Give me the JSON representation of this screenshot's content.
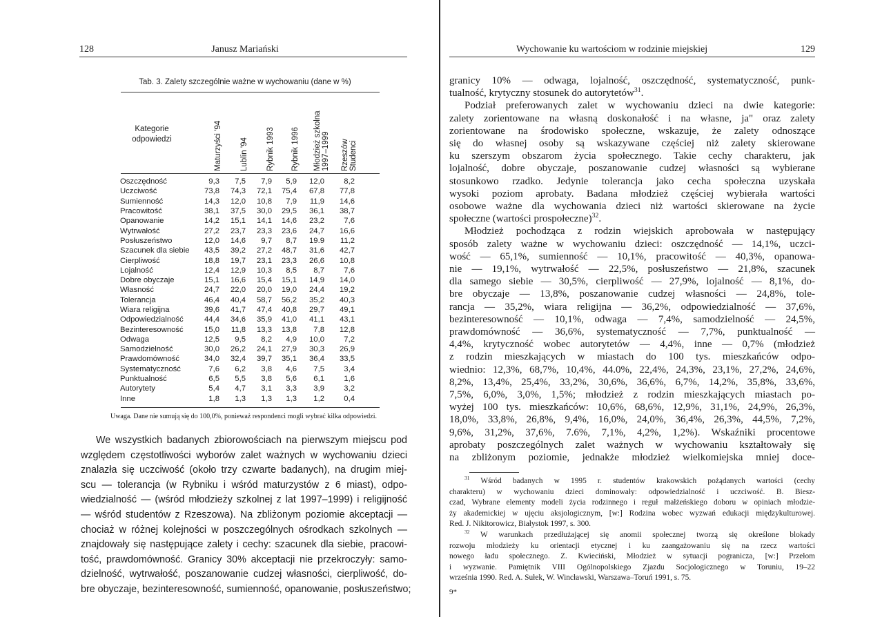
{
  "left_page": {
    "page_number": "128",
    "running_head": "Janusz Mariański",
    "table": {
      "title": "Tab. 3. Zalety szczególnie ważne w wychowaniu (dane w %)",
      "category_header": [
        "Kategorie",
        "odpowiedzi"
      ],
      "columns": [
        [
          "Maturzyści '94"
        ],
        [
          "Lublin '94"
        ],
        [
          "Rybnik 1993"
        ],
        [
          "Rybnik 1996"
        ],
        [
          "Młodzież szkolna",
          "1997–1999"
        ],
        [
          "Rzeszów",
          "Studenci"
        ]
      ],
      "rows": [
        [
          "Oszczędność",
          "9,3",
          "7,5",
          "7,9",
          "5,9",
          "12,0",
          "8,2"
        ],
        [
          "Uczciwość",
          "73,8",
          "74,3",
          "72,1",
          "75,4",
          "67,8",
          "77,8"
        ],
        [
          "Sumienność",
          "14,3",
          "12,0",
          "10,8",
          "7,9",
          "11,9",
          "14,6"
        ],
        [
          "Pracowitość",
          "38,1",
          "37,5",
          "30,0",
          "29,5",
          "36,1",
          "38,7"
        ],
        [
          "Opanowanie",
          "14,2",
          "15,1",
          "14,1",
          "14,6",
          "23,2",
          "7,6"
        ],
        [
          "Wytrwałość",
          "27,2",
          "23,7",
          "23,3",
          "23,6",
          "24,7",
          "16,6"
        ],
        [
          "Posłuszeństwo",
          "12,0",
          "14,6",
          "9,7",
          "8,7",
          "19.9",
          "11,2"
        ],
        [
          "Szacunek dla siebie",
          "43,5",
          "39,2",
          "27,2",
          "48,7",
          "31,6",
          "42,7"
        ],
        [
          "Cierpliwość",
          "18,8",
          "19,7",
          "23,1",
          "23,3",
          "26,6",
          "10,8"
        ],
        [
          "Lojalność",
          "12,4",
          "12,9",
          "10,3",
          "8,5",
          "8,7",
          "7,6"
        ],
        [
          "Dobre obyczaje",
          "15,1",
          "16,6",
          "15,4",
          "15,1",
          "14,9",
          "14,0"
        ],
        [
          "Własność",
          "24,7",
          "22,0",
          "20,0",
          "19,0",
          "24,4",
          "19,2"
        ],
        [
          "Tolerancja",
          "46,4",
          "40,4",
          "58,7",
          "56,2",
          "35,2",
          "40,3"
        ],
        [
          "Wiara religijna",
          "39,6",
          "41,7",
          "47,4",
          "40,8",
          "29,7",
          "49,1"
        ],
        [
          "Odpowiedzialność",
          "44,4",
          "34,6",
          "35,9",
          "41,0",
          "41,1",
          "43,1"
        ],
        [
          "Bezinteresowność",
          "15,0",
          "11,8",
          "13,3",
          "13,8",
          "7,8",
          "12,8"
        ],
        [
          "Odwaga",
          "12,5",
          "9,5",
          "8,2",
          "4,9",
          "10,0",
          "7,2"
        ],
        [
          "Samodzielność",
          "30,0",
          "26,2",
          "24,1",
          "27,9",
          "30,3",
          "26,9"
        ],
        [
          "Prawdomówność",
          "34,0",
          "32,4",
          "39,7",
          "35,1",
          "36,4",
          "33,5"
        ],
        [
          "Systematyczność",
          "7,6",
          "6,2",
          "3,8",
          "4,6",
          "7,5",
          "3,4"
        ],
        [
          "Punktualność",
          "6,5",
          "5,5",
          "3,8",
          "5,6",
          "6,1",
          "1,6"
        ],
        [
          "Autorytety",
          "5,4",
          "4,7",
          "3,1",
          "3,3",
          "3,9",
          "3,2"
        ],
        [
          "Inne",
          "1,8",
          "1,3",
          "1,3",
          "1,3",
          "1,2",
          "0,4"
        ]
      ],
      "note": "Uwaga. Dane nie sumują się do 100,0%, ponieważ respondenci mogli wybrać kilka odpowiedzi."
    },
    "body": [
      {
        "indent": true,
        "lines": [
          "We wszystkich badanych zbiorowościach na pierwszym miejscu pod",
          "względem częstotliwości wyborów zalet ważnych w wychowaniu dzieci",
          "znalazła się uczciwość (około trzy czwarte badanych), na drugim miej-",
          "scu — tolerancja (w Rybniku i wśród maturzystów z 6 miast), odpo-",
          "wiedzialność — (wśród młodzieży szkolnej z lat 1997–1999) i religijność",
          "— wśród studentów z Rzeszowa). Na zbliżonym poziomie akceptacji —",
          "chociaż w różnej kolejności w poszczególnych ośrodkach szkolnych —",
          "znajdowały się następujące zalety i cechy: szacunek dla siebie, pracowi-",
          "tość, prawdomówność. Granicy 30% akceptacji nie przekroczyły: samo-",
          "dzielność, wytrwałość, poszanowanie cudzej własności, cierpliwość, do-",
          "bre obyczaje, bezinteresowność, sumienność, opanowanie, posłuszeństwo;"
        ],
        "continues": true
      }
    ]
  },
  "right_page": {
    "page_number": "129",
    "running_head": "Wychowanie ku wartościom w rodzinie miejskiej",
    "body": [
      {
        "indent": false,
        "lines": [
          "granicy 10% — odwaga, lojalność, oszczędność, systematyczność, punk-",
          {
            "pre": "tualność, krytyczny stosunek do autorytetów",
            "sup": "31",
            "post": "."
          }
        ]
      },
      {
        "indent": true,
        "lines": [
          "Podział preferowanych zalet w wychowaniu dzieci na dwie kategorie:",
          "zalety zorientowane na własną doskonałość i na własne, ja\" oraz zalety",
          "zorientowane na środowisko społeczne, wskazuje, że zalety odnoszące",
          "się do własnej osoby są wskazywane częściej niż zalety skierowane",
          "ku szerszym obszarom życia społecznego. Takie cechy charakteru, jak",
          "lojalność, dobre obyczaje, poszanowanie cudzej własności są wybierane",
          "stosunkowo rzadko. Jedynie tolerancja jako cecha społeczna uzyskała",
          "wysoki poziom aprobaty. Badana młodzież częściej wybierała wartości",
          "osobowe ważne dla wychowania dzieci niż wartości skierowane na życie",
          {
            "pre": "społeczne (wartości prospołeczne)",
            "sup": "32",
            "post": "."
          }
        ]
      },
      {
        "indent": true,
        "lines": [
          "Młodzież pochodząca z rodzin wiejskich aprobowała w następujący",
          "sposób zalety ważne w wychowaniu dzieci: oszczędność — 14,1%, uczci-",
          "wość — 65,1%, sumienność — 10,1%, pracowitość — 40,3%, opanowa-",
          "nie — 19,1%, wytrwałość — 22,5%, posłuszeństwo — 21,8%, szacunek",
          "dla samego siebie — 30,5%, cierpliwość — 27,9%, lojalność — 8,1%, do-",
          "bre obyczaje — 13,8%, poszanowanie cudzej własności — 24,8%, tole-",
          "rancja — 35,2%, wiara religijna — 36,2%, odpowiedzialność — 37,6%,",
          "bezinteresowność — 10,1%, odwaga — 7,4%, samodzielność — 24,5%,",
          "prawdomówność — 36,6%, systematyczność — 7,7%, punktualność —",
          "4,4%, krytyczność wobec autorytetów — 4,4%, inne — 0,7% (młodzież",
          "z rodzin mieszkających w miastach do 100 tys. mieszkańców odpo-",
          "wiednio: 12,3%, 68,7%, 10,4%, 44.0%, 22,4%, 24,3%, 23,1%, 27,2%, 24,6%,",
          "8,2%, 13,4%, 25,4%, 33,2%, 30,6%, 36,6%, 6,7%, 14,2%, 35,8%, 33,6%,",
          "7,5%, 6,0%, 3,0%, 1,5%; młodzież z rodzin mieszkających miastach po-",
          "wyżej 100 tys. mieszkańców: 10,6%, 68,6%, 12,9%, 31,1%, 24,9%, 26,3%,",
          "18,0%, 33,8%, 26,8%, 9,4%, 16,0%, 24,0%, 36,4%, 26,3%, 44,5%, 7,2%,",
          "9,6%, 31,2%, 37,6%, 7.6%, 7,1%, 4,2%, 1,2%). Wskaźniki procentowe",
          "aprobaty poszczególnych zalet ważnych w wychowaniu kształtowały się",
          "na zbliżonym poziomie, jednakże młodzież wielkomiejska mniej doce-"
        ],
        "continues": true
      }
    ],
    "footnotes": [
      {
        "indent": true,
        "lines": [
          {
            "pre": "",
            "sup": "31",
            "post": " Wśród badanych w 1995 r. studentów krakowskich pożądanych wartości (cechy"
          },
          "charakteru) w wychowaniu dzieci dominowały: odpowiedzialność i uczciwość. B. Biesz-",
          "czad, Wybrane elementy modeli życia rodzinnego i reguł małżeńskiego doboru w opiniach młodzie-",
          "ży akademickiej w ujęciu aksjologicznym, [w:] Rodzina wobec wyzwań edukacji międzykulturowej.",
          "Red. J. Nikitorowicz, Białystok 1997, s. 300."
        ]
      },
      {
        "indent": true,
        "lines": [
          {
            "pre": "",
            "sup": "32",
            "post": " W warunkach przedłużającej się anomii społecznej tworzą się określone blokady"
          },
          "rozwoju młodzieży ku orientacji etycznej i ku zaangażowaniu się na rzecz wartości",
          "nowego ładu społecznego. Z. Kwieciński, Młodzież w sytuacji pogranicza, [w:] Przełom",
          "i wyzwanie. Pamiętnik VIII Ogólnopolskiego Zjazdu Socjologicznego w Toruniu, 19–22",
          "września 1990. Red. A. Sułek, W. Wincławski, Warszawa–Toruń 1991, s. 75."
        ]
      }
    ],
    "signature_mark": "9*"
  }
}
